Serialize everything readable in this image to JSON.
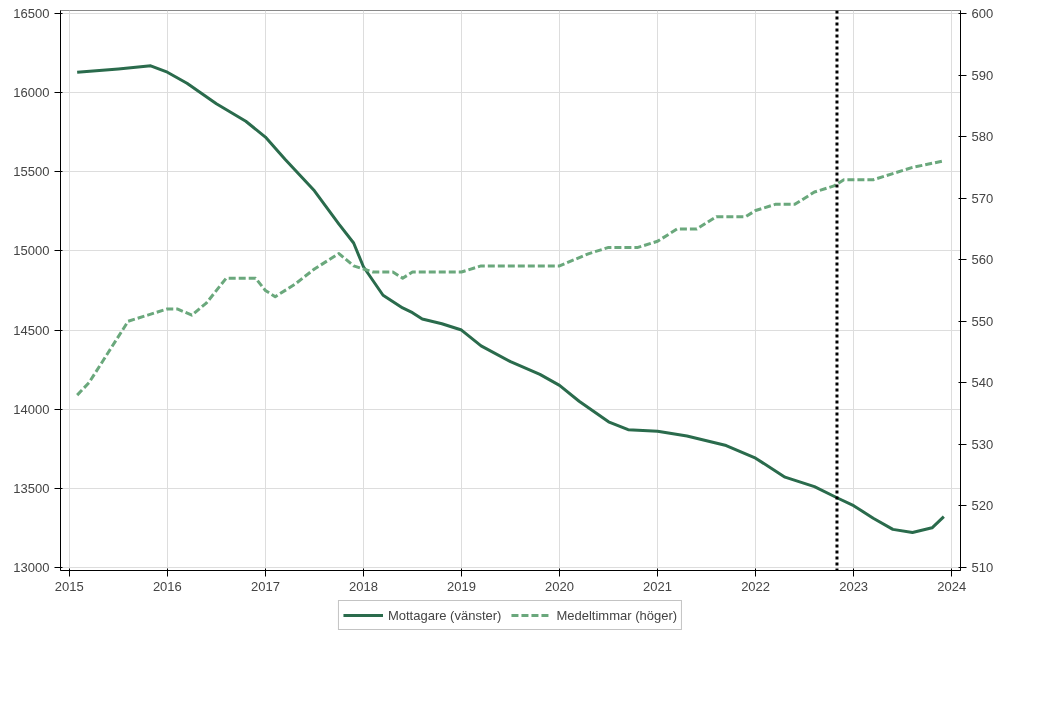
{
  "chart_data": {
    "type": "line",
    "xlim": [
      2014.91,
      2024.09
    ],
    "xticks": [
      2015,
      2016,
      2017,
      2018,
      2019,
      2020,
      2021,
      2022,
      2023,
      2024
    ],
    "ylim": [
      12980,
      16520
    ],
    "yticks": [
      13000,
      13500,
      14000,
      14500,
      15000,
      15500,
      16000,
      16500
    ],
    "y2lim": [
      509.5,
      600.5
    ],
    "y2ticks": [
      510,
      520,
      530,
      540,
      550,
      560,
      570,
      580,
      590,
      600
    ],
    "grid": true,
    "legend": "bottom",
    "series": [
      {
        "name": "Mottagare (vänster)",
        "color": "#2a6b4c",
        "line_style": "solid",
        "x": [
          2015.08,
          2015.5,
          2015.83,
          2016.0,
          2016.2,
          2016.5,
          2016.8,
          2017.0,
          2017.2,
          2017.5,
          2017.75,
          2017.9,
          2018.0,
          2018.2,
          2018.4,
          2018.5,
          2018.6,
          2018.8,
          2019.0,
          2019.2,
          2019.5,
          2019.8,
          2020.0,
          2020.2,
          2020.5,
          2020.7,
          2021.0,
          2021.3,
          2021.7,
          2022.0,
          2022.3,
          2022.6,
          2022.83,
          2023.0,
          2023.2,
          2023.4,
          2023.6,
          2023.8,
          2023.92
        ],
        "values": [
          16130,
          16150,
          16170,
          16130,
          16060,
          15930,
          15820,
          15720,
          15580,
          15380,
          15170,
          15050,
          14900,
          14720,
          14640,
          14610,
          14570,
          14540,
          14500,
          14400,
          14300,
          14220,
          14150,
          14050,
          13920,
          13870,
          13860,
          13830,
          13770,
          13690,
          13570,
          13510,
          13440,
          13390,
          13310,
          13240,
          13220,
          13250,
          13320
        ]
      },
      {
        "name": "Medeltimmar (höger)",
        "color": "#6aa87c",
        "line_style": "dashed",
        "axis": "y2",
        "x": [
          2015.08,
          2015.2,
          2015.4,
          2015.6,
          2015.8,
          2016.0,
          2016.1,
          2016.25,
          2016.4,
          2016.6,
          2016.9,
          2017.0,
          2017.1,
          2017.3,
          2017.5,
          2017.75,
          2017.9,
          2018.1,
          2018.3,
          2018.4,
          2018.5,
          2019.0,
          2019.2,
          2020.0,
          2020.3,
          2020.5,
          2020.8,
          2021.0,
          2021.2,
          2021.4,
          2021.6,
          2021.9,
          2022.0,
          2022.2,
          2022.4,
          2022.5,
          2022.6,
          2022.8,
          2022.9,
          2023.2,
          2023.4,
          2023.6,
          2023.9
        ],
        "values": [
          538,
          540,
          545,
          550,
          551,
          552,
          552,
          551,
          553,
          557,
          557,
          555,
          554,
          556,
          558.5,
          561,
          559,
          558,
          558,
          557,
          558,
          558,
          559,
          559,
          561,
          562,
          562,
          563,
          565,
          565,
          567,
          567,
          568,
          569,
          569,
          570,
          571,
          572,
          573,
          573,
          574,
          575,
          576
        ]
      }
    ],
    "ref_lines": [
      {
        "axis": "x",
        "value": 2022.83,
        "color": "#000000",
        "line_style": "dotted"
      }
    ]
  }
}
